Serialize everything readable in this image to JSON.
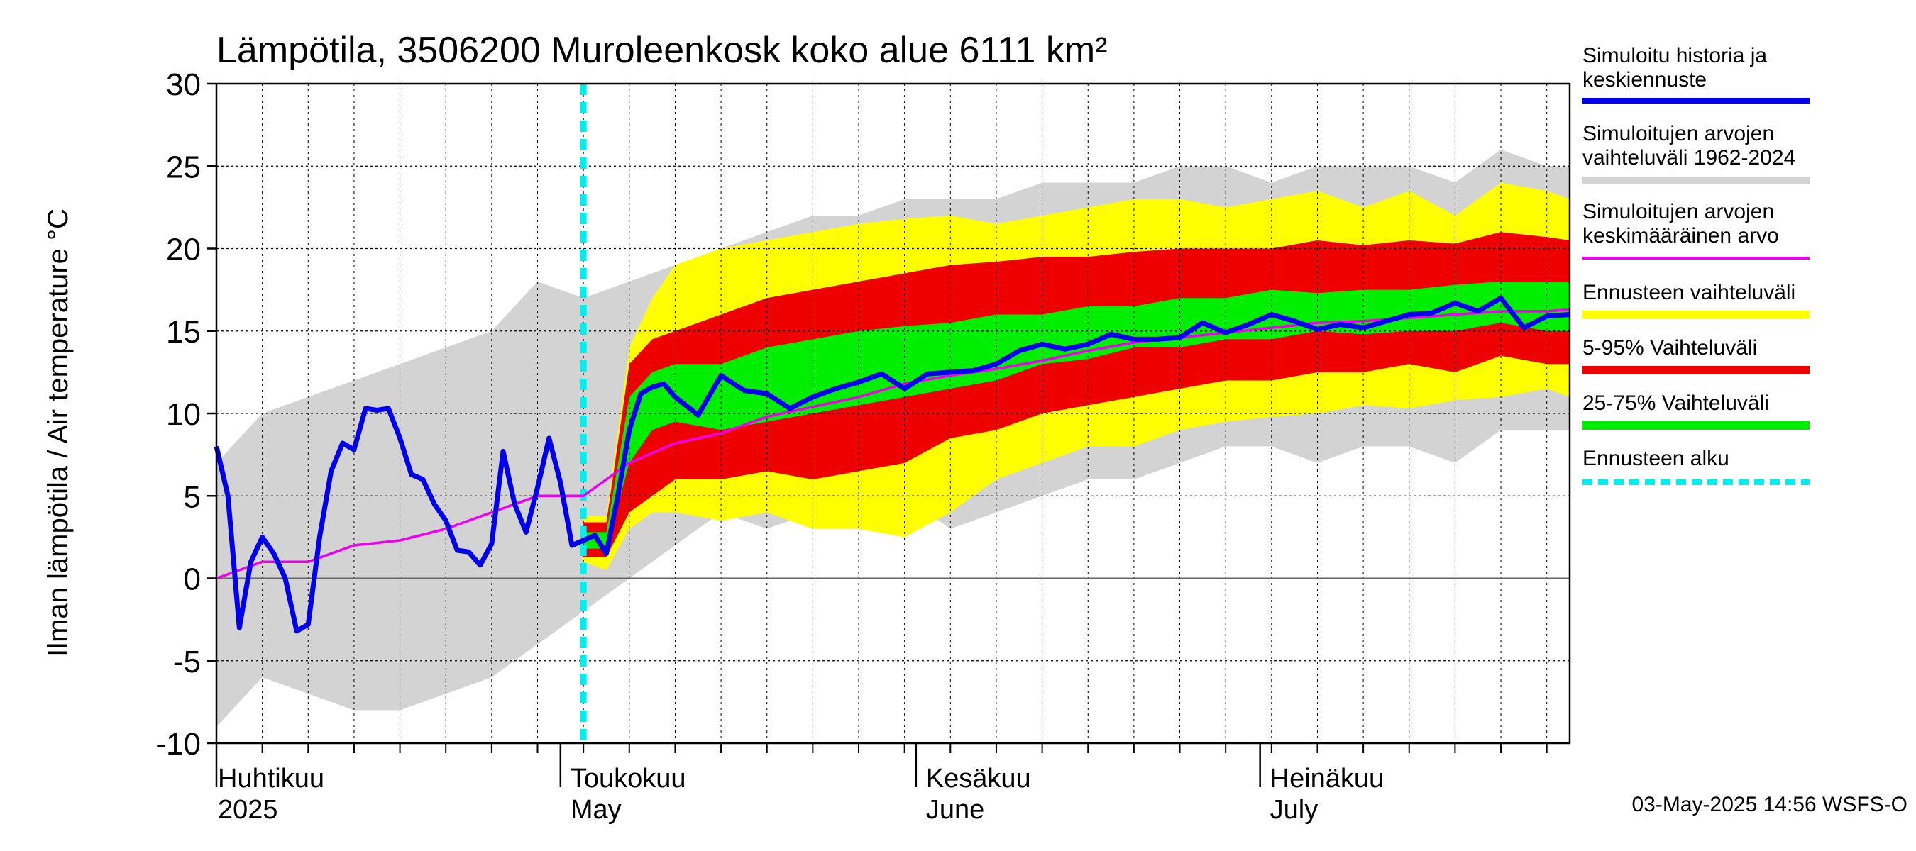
{
  "chart_data": {
    "type": "area",
    "title": "Lämpötila, 3506200 Muroleenkosk koko alue 6111 km²",
    "ylabel": "Ilman lämpötila / Air temperature   °C",
    "ylim": [
      -10,
      30
    ],
    "yticks": [
      -10,
      -5,
      0,
      5,
      10,
      15,
      20,
      25,
      30
    ],
    "xlim_days": [
      0,
      118
    ],
    "forecast_start_day": 32,
    "months": [
      {
        "label_fi": "Huhtikuu",
        "label_en": "2025",
        "start_day": 0
      },
      {
        "label_fi": "Toukokuu",
        "label_en": "May",
        "start_day": 30
      },
      {
        "label_fi": "Kesäkuu",
        "label_en": "June",
        "start_day": 61
      },
      {
        "label_fi": "Heinäkuu",
        "label_en": "July",
        "start_day": 91
      }
    ],
    "legend": [
      {
        "label": "Simuloitu historia ja keskiennuste",
        "color": "#0000ee"
      },
      {
        "label": "Simuloitujen arvojen vaihteluväli 1962-2024",
        "color": "#d3d3d3"
      },
      {
        "label": "Simuloitujen arvojen keskimääräinen arvo",
        "color": "#ee00ee"
      },
      {
        "label": "Ennusteen vaihteluväli",
        "color": "#ffff00"
      },
      {
        "label": "5-95% Vaihteluväli",
        "color": "#ee0000"
      },
      {
        "label": "25-75% Vaihteluväli",
        "color": "#00ee00"
      },
      {
        "label": "Ennusteen alku",
        "color": "#00eeee"
      }
    ],
    "history_range": {
      "x": [
        0,
        4,
        8,
        12,
        16,
        20,
        24,
        28,
        32,
        36,
        40,
        44,
        48,
        52,
        56,
        60,
        64,
        68,
        72,
        76,
        80,
        84,
        88,
        92,
        96,
        100,
        104,
        108,
        112,
        116,
        118
      ],
      "low": [
        -9,
        -6,
        -7,
        -8,
        -8,
        -7,
        -6,
        -4,
        -2,
        0,
        2,
        4,
        3,
        4,
        5,
        5,
        3,
        4,
        5,
        6,
        6,
        7,
        8,
        8,
        7,
        8,
        8,
        7,
        9,
        9,
        9
      ],
      "high": [
        7,
        10,
        11,
        12,
        13,
        14,
        15,
        18,
        17,
        18,
        19,
        20,
        21,
        22,
        22,
        23,
        23,
        23,
        24,
        24,
        24,
        25,
        25,
        24,
        25,
        25,
        25,
        24,
        26,
        25,
        25
      ]
    },
    "series": [
      {
        "name": "Simuloitu historia ja keskiennuste",
        "color": "#0000ee",
        "x": [
          0,
          1,
          2,
          3,
          4,
          5,
          6,
          7,
          8,
          9,
          10,
          11,
          12,
          13,
          14,
          15,
          16,
          17,
          18,
          19,
          20,
          21,
          22,
          23,
          24,
          25,
          26,
          27,
          28,
          29,
          30,
          31,
          32,
          33,
          34,
          35,
          36,
          37,
          38,
          39,
          40,
          42,
          44,
          46,
          48,
          50,
          52,
          54,
          56,
          58,
          60,
          62,
          64,
          66,
          68,
          70,
          72,
          74,
          76,
          78,
          80,
          82,
          84,
          86,
          88,
          90,
          92,
          94,
          96,
          98,
          100,
          102,
          104,
          106,
          108,
          110,
          112,
          114,
          116,
          118
        ],
        "y": [
          8,
          5,
          -3,
          1,
          2.5,
          1.5,
          0,
          -3.2,
          -2.8,
          2.5,
          6.5,
          8.2,
          7.8,
          10.3,
          10.2,
          10.3,
          8.5,
          6.3,
          6,
          4.5,
          3.5,
          1.7,
          1.6,
          0.8,
          2.1,
          7.7,
          4.5,
          2.8,
          5.5,
          8.5,
          5.8,
          2,
          2.3,
          2.6,
          1.5,
          5,
          9,
          11.2,
          11.6,
          11.8,
          11,
          9.9,
          12.3,
          11.4,
          11.2,
          10.3,
          11,
          11.5,
          11.9,
          12.4,
          11.5,
          12.4,
          12.5,
          12.6,
          13,
          13.8,
          14.2,
          13.9,
          14.2,
          14.8,
          14.5,
          14.5,
          14.6,
          15.5,
          14.9,
          15.4,
          16,
          15.6,
          15.1,
          15.4,
          15.2,
          15.6,
          16,
          16.1,
          16.7,
          16.2,
          17,
          15.2,
          15.9,
          16
        ]
      },
      {
        "name": "Simuloitujen arvojen keskimääräinen arvo",
        "color": "#ee00ee",
        "x": [
          0,
          4,
          8,
          12,
          16,
          20,
          24,
          28,
          32,
          36,
          40,
          44,
          48,
          52,
          56,
          60,
          64,
          68,
          72,
          76,
          80,
          84,
          88,
          92,
          96,
          100,
          104,
          108,
          112,
          116,
          118
        ],
        "y": [
          0,
          1,
          1,
          2,
          2.3,
          3,
          4,
          5,
          5,
          7,
          8.2,
          8.8,
          9.8,
          10.4,
          11,
          11.8,
          12.3,
          12.7,
          13.2,
          13.8,
          14.3,
          14.6,
          14.9,
          15.2,
          15.5,
          15.6,
          15.8,
          16,
          16.2,
          16.2,
          16.3
        ]
      }
    ],
    "forecast_bands": {
      "x": [
        32,
        34,
        36,
        38,
        40,
        44,
        48,
        52,
        56,
        60,
        64,
        68,
        72,
        76,
        80,
        84,
        88,
        92,
        96,
        100,
        104,
        108,
        112,
        116,
        118
      ],
      "full_low": [
        1,
        0.5,
        3,
        4,
        4,
        3.5,
        4,
        3,
        3,
        2.5,
        4,
        6,
        7,
        8,
        8,
        9,
        9.5,
        9.8,
        10,
        10.5,
        10.3,
        10.8,
        11,
        11.5,
        11
      ],
      "p05": [
        1.3,
        1.3,
        4,
        5,
        6,
        6,
        6.5,
        6,
        6.5,
        7,
        8.5,
        9,
        10,
        10.5,
        11,
        11.5,
        12,
        12,
        12.5,
        12.5,
        13,
        12.5,
        13.5,
        13,
        13
      ],
      "p25": [
        1.8,
        1.8,
        7,
        9,
        9.5,
        9,
        9.5,
        10,
        10.5,
        11,
        11.5,
        12,
        13,
        13.3,
        14,
        14,
        14.5,
        14.5,
        15,
        14.8,
        15,
        15,
        15.5,
        15,
        15
      ],
      "p75": [
        2.8,
        2.8,
        11,
        12.5,
        13,
        13,
        14,
        14.5,
        15,
        15.3,
        15.5,
        16,
        16,
        16.5,
        16.5,
        17,
        17,
        17.5,
        17.3,
        17.5,
        17.5,
        17.8,
        18,
        18,
        18
      ],
      "p95": [
        3.4,
        3.4,
        13,
        14.5,
        15,
        16,
        17,
        17.5,
        18,
        18.5,
        19,
        19.2,
        19.5,
        19.5,
        19.8,
        20,
        20,
        20,
        20.5,
        20.2,
        20.5,
        20.3,
        21,
        20.7,
        20.5
      ],
      "full_high": [
        3.8,
        3.8,
        14,
        17,
        19,
        20,
        20.5,
        21,
        21.5,
        21.8,
        22,
        21.5,
        22,
        22.5,
        23,
        23,
        22.5,
        23,
        23.5,
        22.5,
        23.5,
        22,
        24,
        23.5,
        23
      ]
    }
  },
  "timestamp": "03-May-2025 14:56 WSFS-O"
}
